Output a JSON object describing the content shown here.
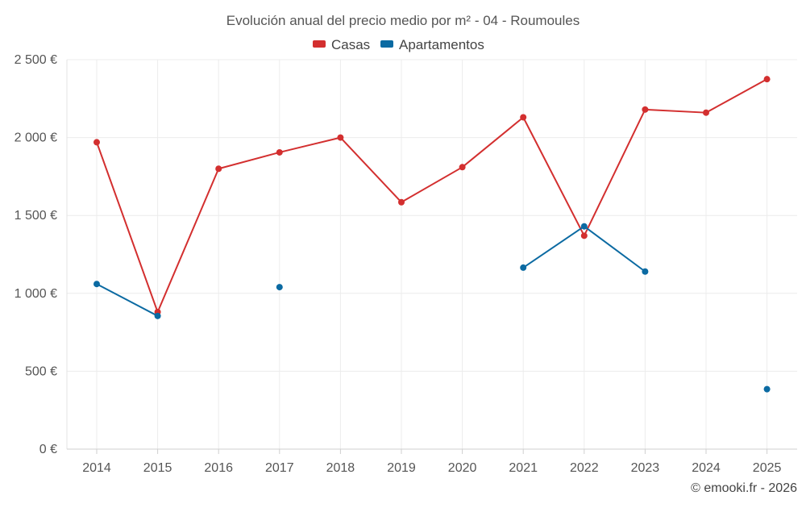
{
  "chart_data": {
    "type": "line",
    "title": "Evolución anual del precio medio por m² - 04 - Roumoules",
    "xlabel": "",
    "ylabel": "",
    "categories": [
      "2014",
      "2015",
      "2016",
      "2017",
      "2018",
      "2019",
      "2020",
      "2021",
      "2022",
      "2023",
      "2024",
      "2025"
    ],
    "ylim": [
      0,
      2500
    ],
    "yticks": [
      0,
      500,
      1000,
      1500,
      2000,
      2500
    ],
    "ytick_labels": [
      "0 €",
      "500 €",
      "1 000 €",
      "1 500 €",
      "2 000 €",
      "2 500 €"
    ],
    "grid": true,
    "legend_position": "top-center",
    "series": [
      {
        "name": "Casas",
        "color": "#d32f2f",
        "values": [
          1970,
          880,
          1800,
          1905,
          2000,
          1585,
          1810,
          2130,
          1370,
          2180,
          2160,
          2375
        ]
      },
      {
        "name": "Apartamentos",
        "color": "#0b6aa2",
        "values": [
          1060,
          855,
          null,
          1040,
          null,
          null,
          null,
          1165,
          1430,
          1140,
          null,
          385
        ]
      }
    ]
  },
  "credit": "© emooki.fr - 2026"
}
